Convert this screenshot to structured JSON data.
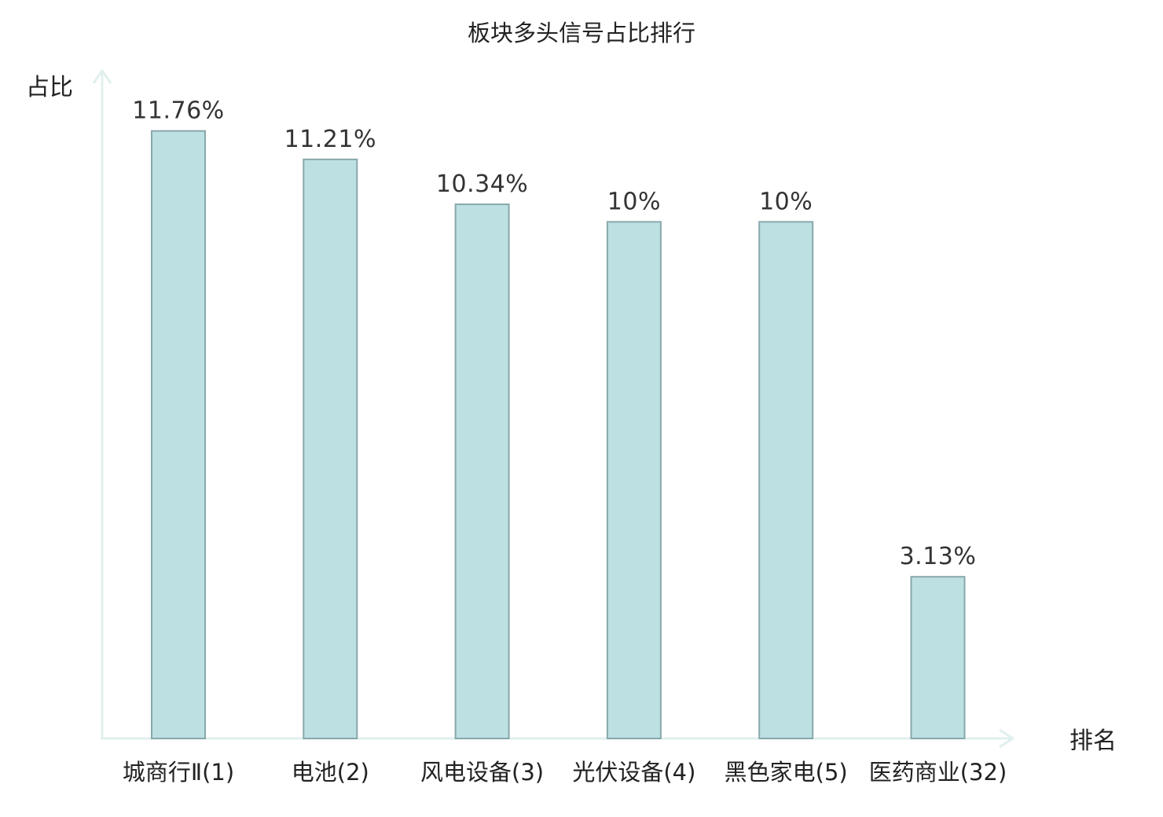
{
  "chart_data": {
    "type": "bar",
    "title": "板块多头信号占比排行",
    "ylabel": "占比",
    "xlabel": "排名",
    "ylim": [
      0,
      13.2
    ],
    "grid": false,
    "categories": [
      "城商行Ⅱ",
      "电池",
      "风电设备",
      "光伏设备",
      "黑色家电",
      "医药商业"
    ],
    "ranks": [
      "(1)",
      "(2)",
      "(3)",
      "(4)",
      "(5)",
      "(32)"
    ],
    "values": [
      11.76,
      11.21,
      10.34,
      10,
      10,
      3.13
    ],
    "value_labels": [
      "11.76%",
      "11.21%",
      "10.34%",
      "10%",
      "10%",
      "3.13%"
    ],
    "highlight_index": 5,
    "colors": {
      "bar_fill": "#bde0e3",
      "bar_stroke": "#88a8ab",
      "axis": "#e0f0ee",
      "text": "#222222",
      "highlight": "#e02020"
    }
  }
}
